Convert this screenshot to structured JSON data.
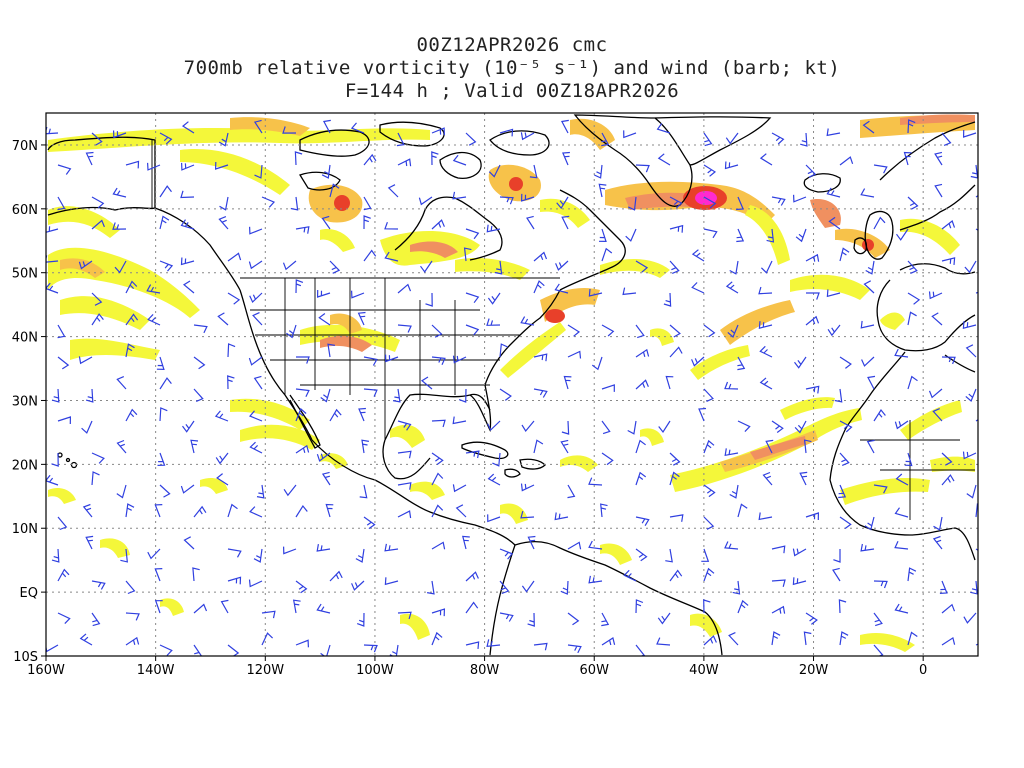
{
  "title": {
    "line1": "00Z12APR2026 cmc",
    "line2": "700mb relative vorticity (10⁻⁵ s⁻¹) and wind (barb; kt)",
    "line3": "F=144 h ; Valid 00Z18APR2026"
  },
  "map": {
    "lon_range": [
      -160,
      10
    ],
    "lat_range": [
      -10,
      75
    ],
    "x_ticks": [
      "160W",
      "140W",
      "120W",
      "100W",
      "80W",
      "60W",
      "40W",
      "20W",
      "0"
    ],
    "y_ticks": [
      "70N",
      "60N",
      "50N",
      "40N",
      "30N",
      "20N",
      "10N",
      "EQ",
      "10S"
    ],
    "colors": {
      "vort_low": "#f4f73a",
      "vort_mid": "#f7c24a",
      "vort_high": "#f09060",
      "vort_peak": "#e8402a",
      "vort_max": "#ff2ad0",
      "barb": "#3040e0",
      "coast": "#000000",
      "grid": "#888888"
    }
  }
}
